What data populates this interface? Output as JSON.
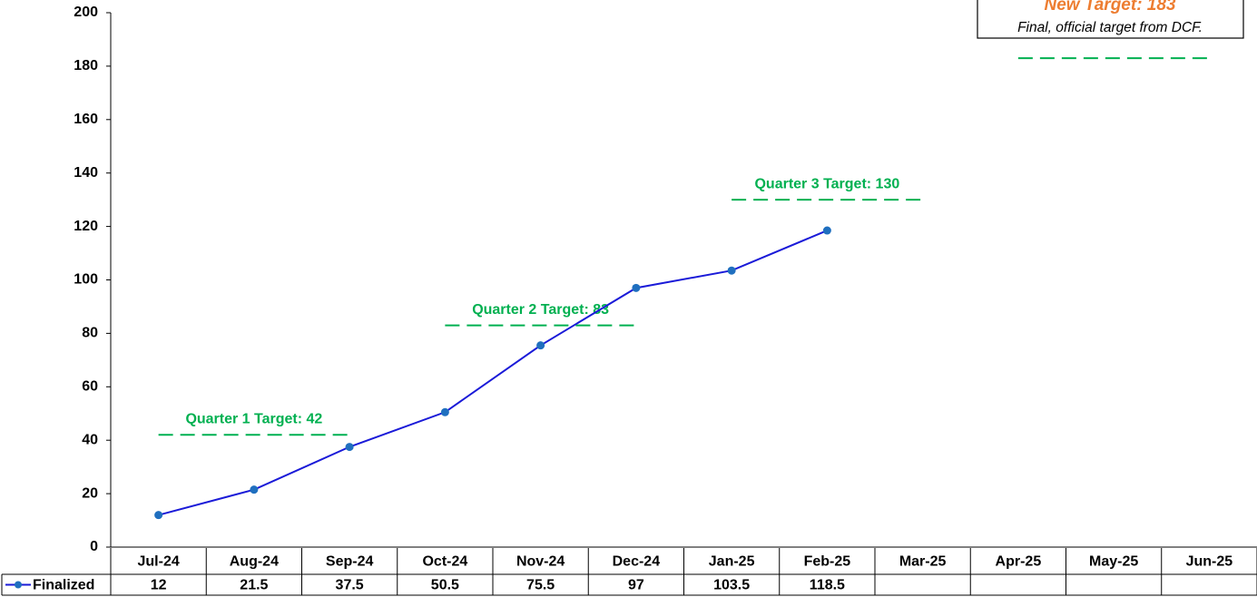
{
  "chart_data": {
    "type": "line",
    "categories": [
      "Jul-24",
      "Aug-24",
      "Sep-24",
      "Oct-24",
      "Nov-24",
      "Dec-24",
      "Jan-25",
      "Feb-25",
      "Mar-25",
      "Apr-25",
      "May-25",
      "Jun-25"
    ],
    "series": [
      {
        "name": "Finalized",
        "color": "#1a1ad8",
        "marker_color": "#1f6fbf",
        "values": [
          12,
          21.5,
          37.5,
          50.5,
          75.5,
          97,
          103.5,
          118.5,
          null,
          null,
          null,
          null
        ]
      }
    ],
    "ylim": [
      0,
      200
    ],
    "yticks": [
      0,
      20,
      40,
      60,
      80,
      100,
      120,
      140,
      160,
      180,
      200
    ],
    "target_color": "#00b050",
    "targets": [
      {
        "label": "Quarter 1 Target: 42",
        "value": 42
      },
      {
        "label": "Quarter 2 Target: 83",
        "value": 83
      },
      {
        "label": "Quarter 3 Target: 130",
        "value": 130
      },
      {
        "value": 183
      }
    ],
    "annotation": {
      "title": "New Target: 183",
      "text": "Final, official target from DCF.",
      "title_color": "#ed7d31"
    }
  }
}
